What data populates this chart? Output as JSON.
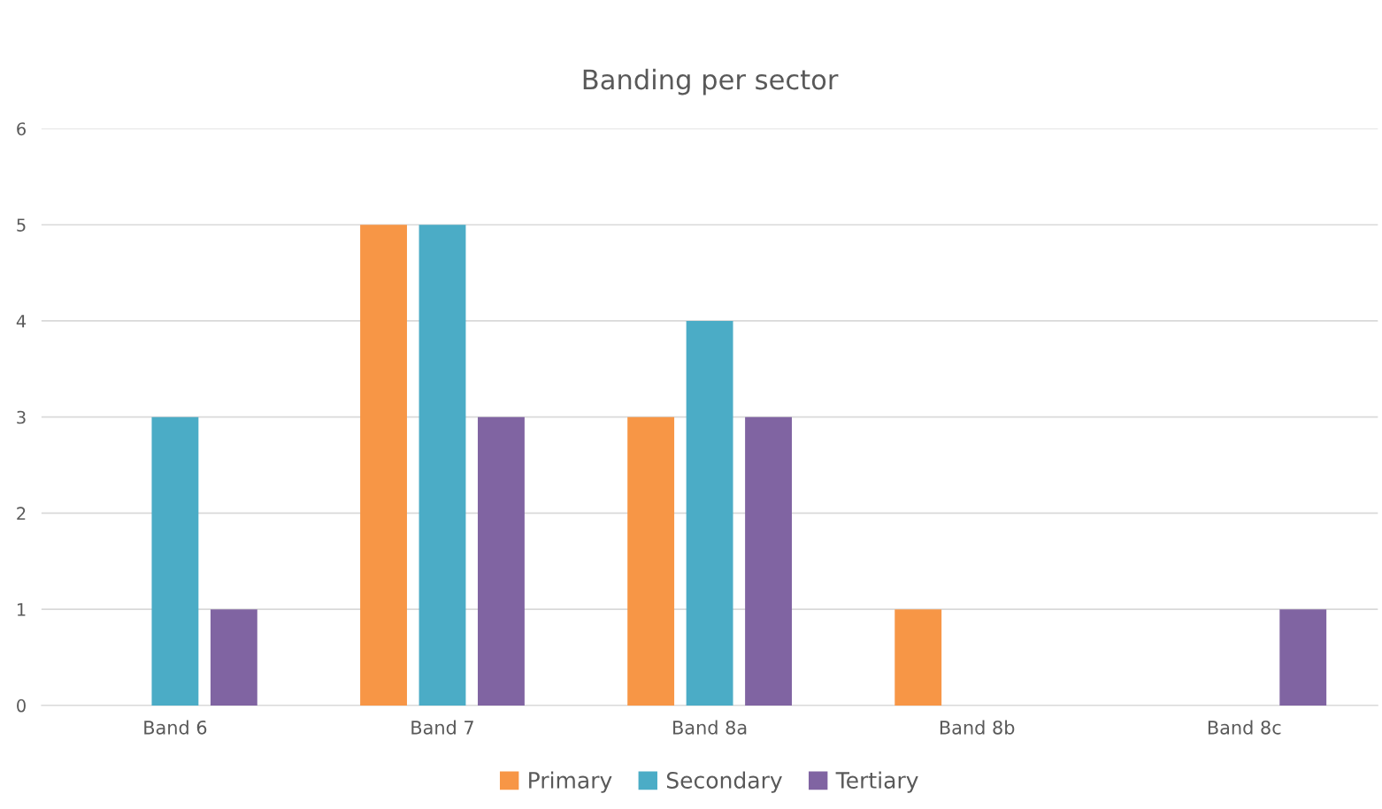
{
  "chart_data": {
    "type": "bar",
    "title": "Banding per sector",
    "categories": [
      "Band 6",
      "Band 7",
      "Band 8a",
      "Band 8b",
      "Band 8c"
    ],
    "series": [
      {
        "name": "Primary",
        "color": "#f79646",
        "values": [
          0,
          5,
          3,
          1,
          0
        ]
      },
      {
        "name": "Secondary",
        "color": "#4bacc6",
        "values": [
          3,
          5,
          4,
          0,
          0
        ]
      },
      {
        "name": "Tertiary",
        "color": "#8064a2",
        "values": [
          1,
          3,
          3,
          0,
          1
        ]
      }
    ],
    "ylim": [
      0,
      6
    ],
    "yticks": [
      0,
      1,
      2,
      3,
      4,
      5,
      6
    ],
    "grid": "y",
    "legend": "bottom"
  }
}
